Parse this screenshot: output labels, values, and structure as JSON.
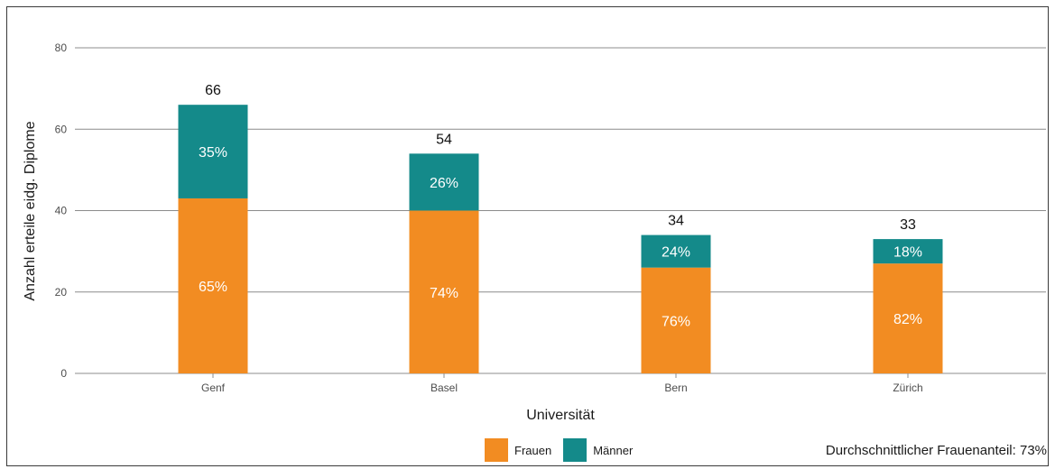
{
  "chart_data": {
    "type": "bar",
    "stacked": true,
    "categories": [
      "Genf",
      "Basel",
      "Bern",
      "Zürich"
    ],
    "series": [
      {
        "name": "Frauen",
        "values": [
          43,
          40,
          26,
          27
        ],
        "labels": [
          "65%",
          "74%",
          "76%",
          "82%"
        ],
        "color": "#f28c22"
      },
      {
        "name": "Männer",
        "values": [
          23,
          14,
          8,
          6
        ],
        "labels": [
          "35%",
          "26%",
          "24%",
          "18%"
        ],
        "color": "#148a8a"
      }
    ],
    "totals": [
      "66",
      "54",
      "34",
      "33"
    ],
    "xlabel": "Universität",
    "ylabel": "Anzahl erteile eidg. Diplome",
    "ylim": [
      0,
      80
    ],
    "yticks": [
      "0",
      "20",
      "40",
      "60",
      "80"
    ],
    "grid": true,
    "legend_position": "bottom",
    "annotation": "Durchschnittlicher Frauenanteil: 73%"
  }
}
